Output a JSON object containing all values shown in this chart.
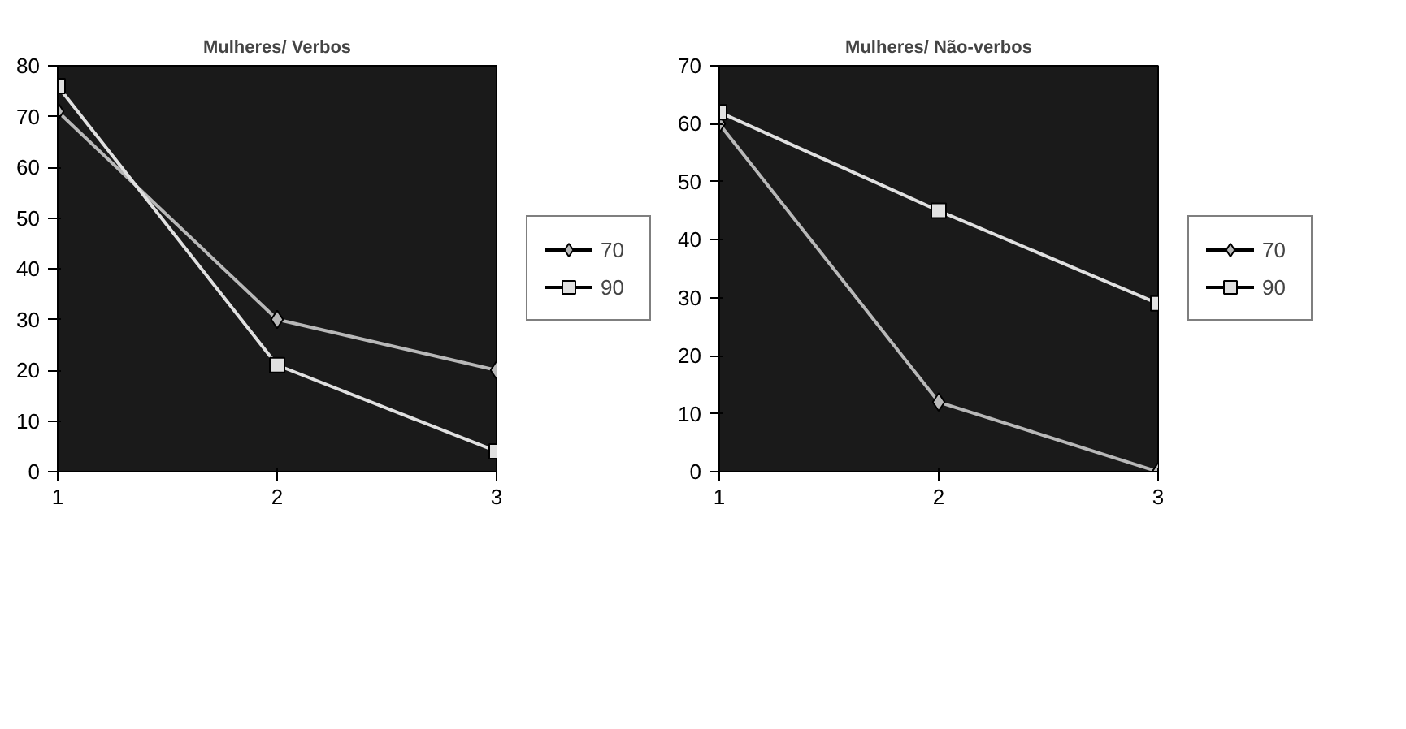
{
  "chart_data": [
    {
      "type": "line",
      "title": "Mulheres/ Verbos",
      "x": [
        1,
        2,
        3
      ],
      "xlim": [
        1,
        3
      ],
      "xticks": [
        1,
        2,
        3
      ],
      "ylim": [
        0,
        80
      ],
      "yticks": [
        0,
        10,
        20,
        30,
        40,
        50,
        60,
        70,
        80
      ],
      "grid": false,
      "legend": "right",
      "series": [
        {
          "name": "70",
          "color": "#b8b8b8",
          "marker": "diamond",
          "values": [
            71,
            30,
            20
          ]
        },
        {
          "name": "90",
          "color": "#e0e0e0",
          "marker": "square",
          "values": [
            76,
            21,
            4
          ]
        }
      ]
    },
    {
      "type": "line",
      "title": "Mulheres/ Não-verbos",
      "x": [
        1,
        2,
        3
      ],
      "xlim": [
        1,
        3
      ],
      "xticks": [
        1,
        2,
        3
      ],
      "ylim": [
        0,
        70
      ],
      "yticks": [
        0,
        10,
        20,
        30,
        40,
        50,
        60,
        70
      ],
      "grid": false,
      "legend": "right",
      "series": [
        {
          "name": "70",
          "color": "#b8b8b8",
          "marker": "diamond",
          "values": [
            60,
            12,
            0
          ]
        },
        {
          "name": "90",
          "color": "#e0e0e0",
          "marker": "square",
          "values": [
            62,
            45,
            29
          ]
        }
      ]
    }
  ]
}
